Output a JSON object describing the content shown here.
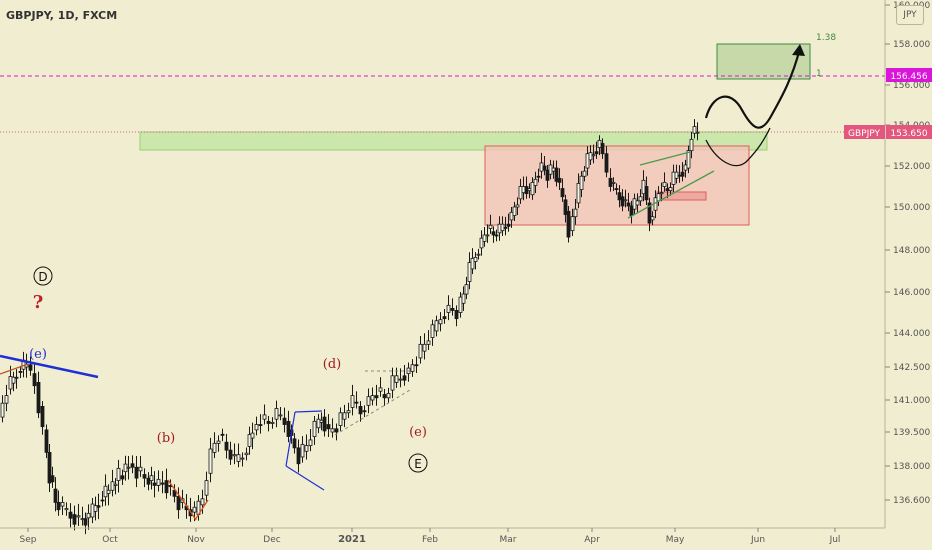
{
  "header": {
    "symbol": "GBPJPY, 1D, FXCM",
    "currency": "JPY"
  },
  "chart_data": {
    "type": "candlestick",
    "title": "GBPJPY, 1D, FXCM",
    "xlabel": "",
    "ylabel": "",
    "ylim": [
      135.9,
      160.0
    ],
    "y_ticks": [
      "136.600",
      "138.000",
      "139.500",
      "141.000",
      "142.500",
      "144.000",
      "146.000",
      "148.000",
      "150.000",
      "152.000",
      "154.000",
      "156.000",
      "158.000",
      "160.000"
    ],
    "x_ticks": [
      "Sep",
      "Oct",
      "Nov",
      "Dec",
      "2021",
      "Feb",
      "Mar",
      "Apr",
      "May",
      "Jun",
      "Jul"
    ],
    "series": [
      {
        "name": "GBPJPY",
        "closes": [
          [
            0,
            140.2
          ],
          [
            8,
            141.5
          ],
          [
            18,
            142.3
          ],
          [
            28,
            142.6
          ],
          [
            36,
            141.8
          ],
          [
            44,
            139.6
          ],
          [
            50,
            137.6
          ],
          [
            56,
            136.5
          ],
          [
            64,
            136.2
          ],
          [
            72,
            136.0
          ],
          [
            80,
            135.8
          ],
          [
            90,
            135.9
          ],
          [
            100,
            136.6
          ],
          [
            110,
            137.0
          ],
          [
            120,
            137.6
          ],
          [
            130,
            138.1
          ],
          [
            138,
            137.8
          ],
          [
            146,
            137.5
          ],
          [
            156,
            137.2
          ],
          [
            164,
            137.4
          ],
          [
            172,
            137.0
          ],
          [
            180,
            136.5
          ],
          [
            188,
            136.2
          ],
          [
            196,
            136.0
          ],
          [
            204,
            136.8
          ],
          [
            212,
            138.6
          ],
          [
            220,
            139.4
          ],
          [
            228,
            138.7
          ],
          [
            236,
            138.2
          ],
          [
            244,
            138.5
          ],
          [
            254,
            139.6
          ],
          [
            262,
            140.1
          ],
          [
            270,
            139.9
          ],
          [
            278,
            140.3
          ],
          [
            286,
            140.0
          ],
          [
            292,
            139.2
          ],
          [
            300,
            138.4
          ],
          [
            308,
            138.9
          ],
          [
            316,
            139.7
          ],
          [
            322,
            140.2
          ],
          [
            330,
            139.5
          ],
          [
            338,
            139.8
          ],
          [
            346,
            140.4
          ],
          [
            354,
            140.9
          ],
          [
            362,
            140.5
          ],
          [
            370,
            141.0
          ],
          [
            378,
            141.4
          ],
          [
            386,
            141.1
          ],
          [
            394,
            141.8
          ],
          [
            402,
            142.1
          ],
          [
            410,
            142.3
          ],
          [
            418,
            142.9
          ],
          [
            426,
            143.5
          ],
          [
            434,
            144.1
          ],
          [
            442,
            144.8
          ],
          [
            450,
            145.2
          ],
          [
            458,
            145.0
          ],
          [
            464,
            145.9
          ],
          [
            470,
            147.1
          ],
          [
            476,
            147.8
          ],
          [
            482,
            148.4
          ],
          [
            488,
            149.0
          ],
          [
            494,
            148.7
          ],
          [
            500,
            148.9
          ],
          [
            506,
            149.2
          ],
          [
            512,
            149.6
          ],
          [
            518,
            150.4
          ],
          [
            524,
            151.0
          ],
          [
            530,
            150.6
          ],
          [
            536,
            151.5
          ],
          [
            542,
            152.0
          ],
          [
            548,
            151.6
          ],
          [
            554,
            151.9
          ],
          [
            560,
            150.9
          ],
          [
            566,
            149.8
          ],
          [
            570,
            148.9
          ],
          [
            576,
            150.2
          ],
          [
            582,
            151.5
          ],
          [
            588,
            152.3
          ],
          [
            594,
            152.7
          ],
          [
            600,
            153.1
          ],
          [
            604,
            152.6
          ],
          [
            608,
            151.4
          ],
          [
            614,
            150.9
          ],
          [
            620,
            150.5
          ],
          [
            626,
            150.2
          ],
          [
            632,
            149.9
          ],
          [
            638,
            150.3
          ],
          [
            644,
            151.0
          ],
          [
            650,
            149.4
          ],
          [
            656,
            150.3
          ],
          [
            662,
            151.0
          ],
          [
            668,
            150.8
          ],
          [
            674,
            151.4
          ],
          [
            680,
            151.7
          ],
          [
            686,
            151.9
          ],
          [
            692,
            153.6
          ],
          [
            698,
            153.65
          ]
        ]
      }
    ],
    "price_labels": {
      "level_high": "156.456",
      "current": "153.650",
      "current_symbol": "GBPJPY"
    },
    "fib_labels": {
      "upper": "1.38",
      "lower": "1"
    },
    "wave_labels": {
      "D": "D",
      "D_question": "?",
      "e_left": "(e)",
      "b": "(b)",
      "d": "(d)",
      "e_mid": "(e)",
      "E": "E"
    },
    "colors": {
      "background": "#f1edd0",
      "candle": "#1a1a1a",
      "resistance_zone": "#c5e5a5",
      "range_box": "#f3c4b8",
      "range_border": "#e35b5b",
      "magenta": "#d916d9",
      "price_tag": "#e3577e",
      "wave_red": "#a01c1c",
      "trend_blue": "#1f2fd8",
      "fib_green": "#3f8a3f"
    },
    "grid": false
  }
}
